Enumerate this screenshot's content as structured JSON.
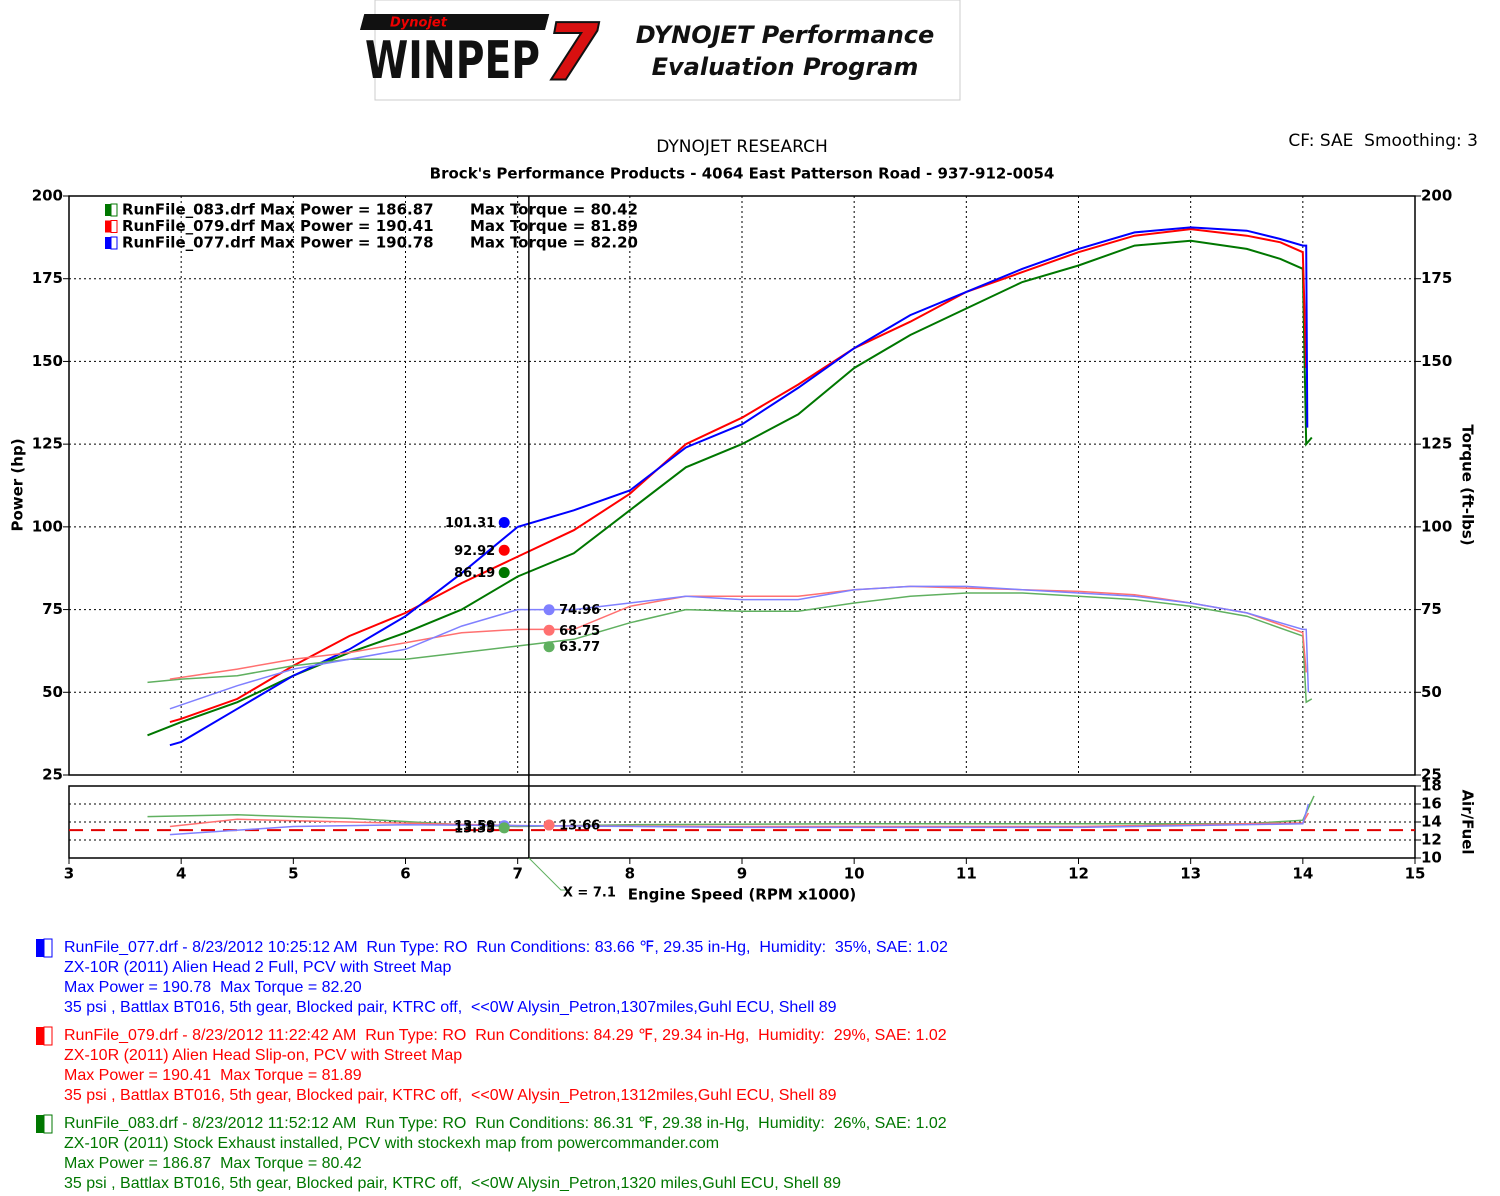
{
  "header": {
    "logo_brand": "Dynojet",
    "logo_name": "WINPEP",
    "logo_number": "7",
    "logo_line1": "DYNOJET Performance",
    "logo_line2": "Evaluation Program"
  },
  "chart_data": [
    {
      "type": "line",
      "title": "DYNOJET RESEARCH",
      "subtitle": "Brock's Performance Products - 4064 East Patterson Road - 937-912-0054",
      "note": "CF: SAE  Smoothing: 3",
      "x_label": "Engine Speed (RPM x1000)",
      "y_label": "Power (hp)",
      "y2_label": "Torque (ft-lbs)",
      "xlim": [
        3,
        15
      ],
      "xticks": [
        3,
        4,
        5,
        6,
        7,
        8,
        9,
        10,
        11,
        12,
        13,
        14,
        15
      ],
      "ylim": [
        25,
        200
      ],
      "yticks": [
        25,
        50,
        75,
        100,
        125,
        150,
        175,
        200
      ],
      "y2lim": [
        25,
        200
      ],
      "y2ticks": [
        25,
        50,
        75,
        100,
        125,
        150,
        175,
        200
      ],
      "grid": true,
      "legend": [
        {
          "text": "RunFile_083.drf Max Power = 186.87",
          "torque_text": "Max Torque = 80.42",
          "color": "#007700"
        },
        {
          "text": "RunFile_079.drf Max Power = 190.41",
          "torque_text": "Max Torque = 81.89",
          "color": "#ff0000"
        },
        {
          "text": "RunFile_077.drf Max Power = 190.78",
          "torque_text": "Max Torque = 82.20",
          "color": "#0000ff"
        }
      ],
      "series": [
        {
          "color": "#007700",
          "x": [
            3.7,
            4.0,
            4.5,
            5.0,
            5.5,
            6.0,
            6.5,
            7.0,
            7.5,
            8.0,
            8.5,
            9.0,
            9.5,
            10.0,
            10.5,
            11.0,
            11.5,
            12.0,
            12.5,
            13.0,
            13.5,
            13.8,
            14.0,
            14.03,
            14.08
          ],
          "values": [
            37,
            41,
            47,
            55,
            62,
            68,
            75,
            85,
            92,
            105,
            118,
            125,
            134,
            148,
            158,
            166,
            174,
            179,
            185,
            186.5,
            184,
            181,
            178,
            125,
            127
          ]
        },
        {
          "color": "#ff0000",
          "x": [
            3.9,
            4.0,
            4.5,
            5.0,
            5.5,
            6.0,
            6.5,
            7.0,
            7.5,
            8.0,
            8.5,
            9.0,
            9.5,
            10.0,
            10.5,
            11.0,
            11.5,
            12.0,
            12.5,
            13.0,
            13.5,
            13.8,
            14.0,
            14.03
          ],
          "values": [
            41,
            42,
            48,
            58,
            67,
            74,
            83,
            91,
            99,
            110,
            125,
            133,
            143,
            154,
            162,
            171,
            177,
            183,
            188,
            190,
            188,
            186,
            183,
            148
          ]
        },
        {
          "color": "#0000ff",
          "x": [
            3.9,
            4.0,
            4.5,
            5.0,
            5.5,
            6.0,
            6.5,
            7.0,
            7.5,
            8.0,
            8.5,
            9.0,
            9.5,
            10.0,
            10.5,
            11.0,
            11.5,
            12.0,
            12.5,
            13.0,
            13.5,
            13.8,
            14.0,
            14.03,
            14.04
          ],
          "values": [
            34,
            35,
            45,
            55,
            63,
            73,
            86,
            100,
            105,
            111,
            124,
            131,
            142,
            154,
            164,
            171,
            178,
            184,
            189,
            190.5,
            189.5,
            187,
            185,
            185,
            130
          ]
        },
        {
          "color": "#60b060",
          "axis": "y2",
          "x": [
            3.7,
            4.0,
            4.5,
            5.0,
            5.5,
            6.0,
            6.5,
            7.0,
            7.5,
            8.0,
            8.5,
            9.0,
            9.5,
            10.0,
            10.5,
            11.0,
            11.5,
            12.0,
            12.5,
            13.0,
            13.5,
            14.0,
            14.03,
            14.08
          ],
          "values": [
            53,
            54,
            55,
            58,
            60,
            60,
            62,
            64,
            66,
            71,
            75,
            74.5,
            74.5,
            77,
            79,
            80,
            80,
            79,
            78,
            76,
            73,
            67,
            47,
            48
          ]
        },
        {
          "color": "#ff7070",
          "axis": "y2",
          "x": [
            3.9,
            4.5,
            5.0,
            5.5,
            6.0,
            6.5,
            7.0,
            7.5,
            8.0,
            8.5,
            9.0,
            9.5,
            10.0,
            10.5,
            11.0,
            11.5,
            12.0,
            12.5,
            13.0,
            13.5,
            14.0,
            14.03
          ],
          "values": [
            54,
            57,
            60,
            62,
            65,
            68,
            69,
            69,
            76,
            79,
            79,
            79,
            81,
            82,
            81.5,
            81,
            80.5,
            79.5,
            77,
            74,
            68,
            56
          ]
        },
        {
          "color": "#8080ff",
          "axis": "y2",
          "x": [
            3.9,
            4.5,
            5.0,
            5.5,
            6.0,
            6.5,
            7.0,
            7.5,
            8.0,
            8.5,
            9.0,
            9.5,
            10.0,
            10.5,
            11.0,
            11.5,
            12.0,
            12.5,
            13.0,
            13.5,
            14.0,
            14.03,
            14.05
          ],
          "values": [
            45,
            52,
            57,
            60,
            63,
            70,
            75,
            75,
            77,
            79,
            78,
            78,
            81,
            82,
            82,
            81,
            80,
            79,
            77,
            74,
            69,
            69,
            50
          ]
        }
      ],
      "cursor": {
        "x": 7.1,
        "label": "X = 7.1",
        "points": [
          {
            "x": 6.88,
            "y": 101.31,
            "color": "#0000ff"
          },
          {
            "x": 6.88,
            "y": 92.92,
            "color": "#ff0000"
          },
          {
            "x": 6.88,
            "y": 86.19,
            "color": "#007700"
          },
          {
            "x": 7.28,
            "y": 74.96,
            "color": "#8080ff"
          },
          {
            "x": 7.28,
            "y": 68.75,
            "color": "#ff7070"
          },
          {
            "x": 7.28,
            "y": 63.77,
            "color": "#60b060"
          }
        ]
      }
    },
    {
      "type": "line",
      "y2_label": "Air/Fuel",
      "xlim": [
        3,
        15
      ],
      "y2lim": [
        10,
        18
      ],
      "y2ticks": [
        10,
        12,
        14,
        16,
        18
      ],
      "grid": true,
      "reference_line": {
        "value": 13.1,
        "color": "#e00000"
      },
      "series": [
        {
          "color": "#60b060",
          "x": [
            3.7,
            4.5,
            5.5,
            6.5,
            7.0,
            8.0,
            10.0,
            12.0,
            13.5,
            14.0,
            14.1
          ],
          "values": [
            14.6,
            14.8,
            14.4,
            13.7,
            13.5,
            13.7,
            13.8,
            13.8,
            13.8,
            14.2,
            16.9
          ]
        },
        {
          "color": "#ff7070",
          "x": [
            3.9,
            4.5,
            5.5,
            7.0,
            9.0,
            12.0,
            14.0,
            14.05
          ],
          "values": [
            13.5,
            14.3,
            14.0,
            13.6,
            13.5,
            13.5,
            13.9,
            15
          ]
        },
        {
          "color": "#8080ff",
          "x": [
            3.9,
            5.0,
            6.0,
            7.0,
            9.0,
            12.0,
            14.0,
            14.05
          ],
          "values": [
            12.6,
            13.5,
            13.7,
            13.6,
            13.4,
            13.4,
            13.8,
            16
          ]
        }
      ],
      "cursor_points": [
        {
          "x": 6.88,
          "y": 13.59,
          "color": "#8080ff"
        },
        {
          "x": 6.88,
          "y": 13.35,
          "color": "#60b060"
        },
        {
          "x": 7.28,
          "y": 13.66,
          "color": "#ff7070"
        }
      ]
    }
  ],
  "runs": [
    {
      "color": "#0000ff",
      "lines": [
        "RunFile_077.drf - 8/23/2012 10:25:12 AM  Run Type: RO  Run Conditions: 83.66 ℉, 29.35 in-Hg,  Humidity:  35%, SAE: 1.02",
        "ZX-10R (2011) Alien Head 2 Full, PCV with Street Map",
        "Max Power = 190.78  Max Torque = 82.20",
        "35 psi , Battlax BT016, 5th gear, Blocked pair, KTRC off,  <<0W Alysin_Petron,1307miles,Guhl ECU, Shell 89"
      ]
    },
    {
      "color": "#ff0000",
      "lines": [
        "RunFile_079.drf - 8/23/2012 11:22:42 AM  Run Type: RO  Run Conditions: 84.29 ℉, 29.34 in-Hg,  Humidity:  29%, SAE: 1.02",
        "ZX-10R (2011) Alien Head Slip-on, PCV with Street Map",
        "Max Power = 190.41  Max Torque = 81.89",
        "35 psi , Battlax BT016, 5th gear, Blocked pair, KTRC off,  <<0W Alysin_Petron,1312miles,Guhl ECU, Shell 89"
      ]
    },
    {
      "color": "#007700",
      "lines": [
        "RunFile_083.drf - 8/23/2012 11:52:12 AM  Run Type: RO  Run Conditions: 86.31 ℉, 29.38 in-Hg,  Humidity:  26%, SAE: 1.02",
        "ZX-10R (2011) Stock Exhaust installed, PCV with stockexh map from powercommander.com",
        "Max Power = 186.87  Max Torque = 80.42",
        "35 psi , Battlax BT016, 5th gear, Blocked pair, KTRC off,  <<0W Alysin_Petron,1320 miles,Guhl ECU, Shell 89"
      ]
    }
  ]
}
